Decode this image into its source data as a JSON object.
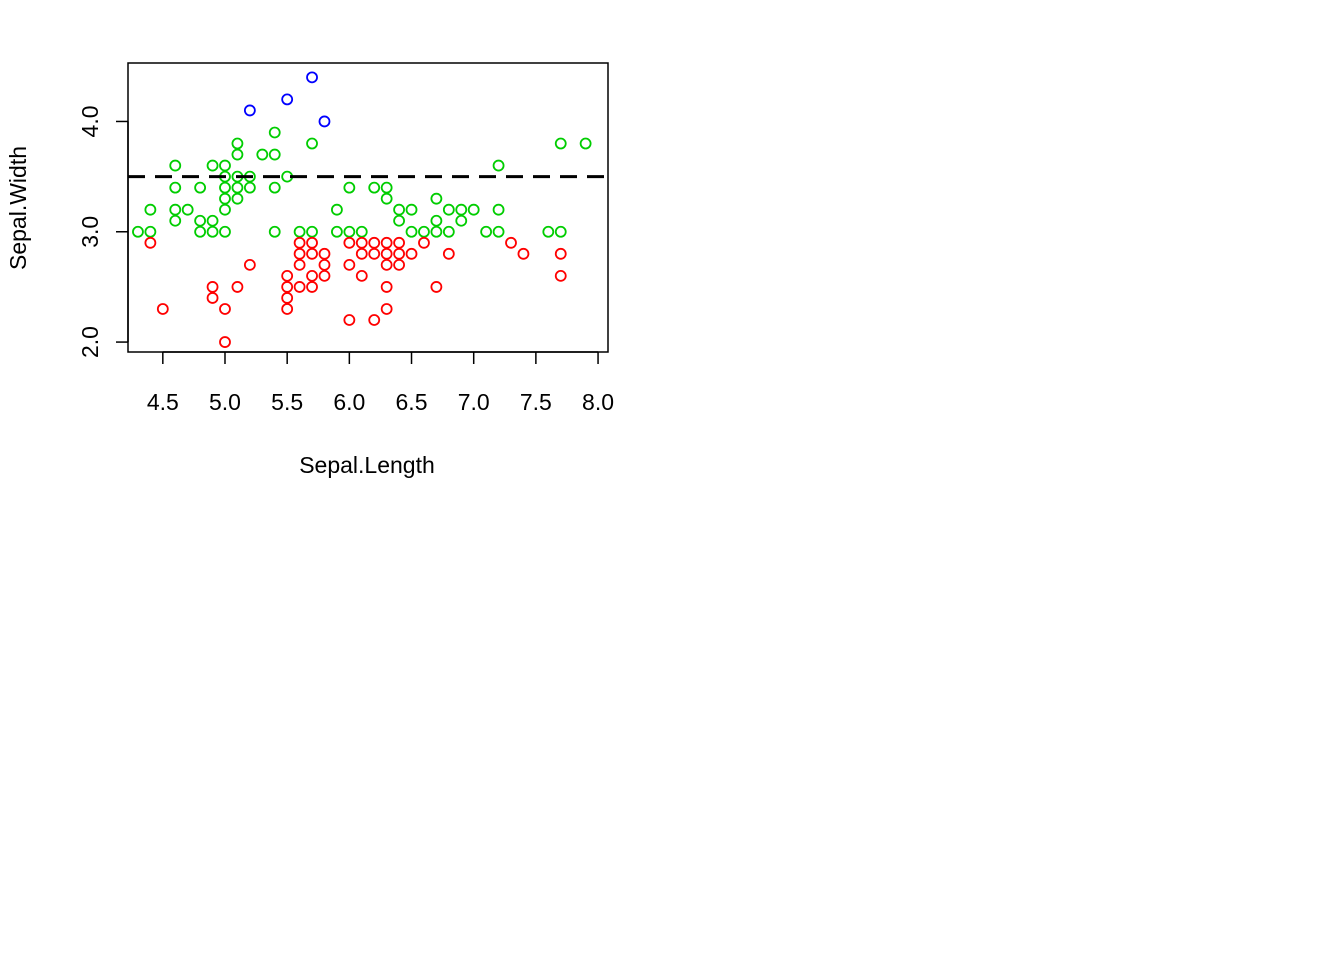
{
  "chart_data": {
    "type": "scatter",
    "title": "",
    "xlabel": "Sepal.Length",
    "ylabel": "Sepal.Width",
    "xlim": [
      4.22,
      8.08
    ],
    "ylim": [
      1.91,
      4.53
    ],
    "x_ticks": [
      4.5,
      5.0,
      5.5,
      6.0,
      6.5,
      7.0,
      7.5,
      8.0
    ],
    "x_tick_labels": [
      "4.5",
      "5.0",
      "5.5",
      "6.0",
      "6.5",
      "7.0",
      "7.5",
      "8.0"
    ],
    "y_ticks": [
      2.0,
      3.0,
      4.0
    ],
    "y_tick_labels": [
      "2.0",
      "3.0",
      "4.0"
    ],
    "marker": "open-circle",
    "reference_line": {
      "type": "horizontal",
      "y": 3.5,
      "style": "dashed",
      "color": "#000000"
    },
    "series": [
      {
        "name": "blue",
        "color": "#0000ff",
        "points": [
          [
            5.2,
            4.1
          ],
          [
            5.5,
            4.2
          ],
          [
            5.7,
            4.4
          ],
          [
            5.8,
            4.0
          ]
        ]
      },
      {
        "name": "green",
        "color": "#00cd00",
        "points": [
          [
            4.3,
            3.0
          ],
          [
            4.4,
            3.2
          ],
          [
            4.4,
            3.0
          ],
          [
            4.6,
            3.6
          ],
          [
            4.6,
            3.4
          ],
          [
            4.6,
            3.2
          ],
          [
            4.6,
            3.1
          ],
          [
            4.7,
            3.2
          ],
          [
            4.8,
            3.4
          ],
          [
            4.8,
            3.1
          ],
          [
            4.8,
            3.0
          ],
          [
            4.9,
            3.6
          ],
          [
            4.9,
            3.1
          ],
          [
            4.9,
            3.0
          ],
          [
            5.0,
            3.6
          ],
          [
            5.0,
            3.5
          ],
          [
            5.0,
            3.4
          ],
          [
            5.0,
            3.3
          ],
          [
            5.0,
            3.2
          ],
          [
            5.0,
            3.0
          ],
          [
            5.1,
            3.8
          ],
          [
            5.1,
            3.7
          ],
          [
            5.1,
            3.5
          ],
          [
            5.1,
            3.4
          ],
          [
            5.1,
            3.3
          ],
          [
            5.2,
            3.5
          ],
          [
            5.2,
            3.4
          ],
          [
            5.3,
            3.7
          ],
          [
            5.4,
            3.9
          ],
          [
            5.4,
            3.7
          ],
          [
            5.4,
            3.4
          ],
          [
            5.4,
            3.0
          ],
          [
            5.5,
            3.5
          ],
          [
            5.6,
            3.0
          ],
          [
            5.7,
            3.8
          ],
          [
            5.7,
            3.0
          ],
          [
            5.9,
            3.2
          ],
          [
            5.9,
            3.0
          ],
          [
            6.0,
            3.4
          ],
          [
            6.0,
            3.0
          ],
          [
            6.1,
            3.0
          ],
          [
            6.2,
            3.4
          ],
          [
            6.3,
            3.4
          ],
          [
            6.3,
            3.3
          ],
          [
            6.4,
            3.2
          ],
          [
            6.4,
            3.1
          ],
          [
            6.5,
            3.2
          ],
          [
            6.5,
            3.0
          ],
          [
            6.6,
            3.0
          ],
          [
            6.7,
            3.3
          ],
          [
            6.7,
            3.1
          ],
          [
            6.7,
            3.0
          ],
          [
            6.8,
            3.2
          ],
          [
            6.8,
            3.0
          ],
          [
            6.9,
            3.2
          ],
          [
            6.9,
            3.1
          ],
          [
            7.0,
            3.2
          ],
          [
            7.1,
            3.0
          ],
          [
            7.2,
            3.6
          ],
          [
            7.2,
            3.2
          ],
          [
            7.2,
            3.0
          ],
          [
            7.6,
            3.0
          ],
          [
            7.7,
            3.8
          ],
          [
            7.7,
            3.0
          ],
          [
            7.9,
            3.8
          ]
        ]
      },
      {
        "name": "red",
        "color": "#ff0000",
        "points": [
          [
            4.4,
            2.9
          ],
          [
            4.5,
            2.3
          ],
          [
            4.9,
            2.5
          ],
          [
            4.9,
            2.4
          ],
          [
            5.0,
            2.3
          ],
          [
            5.0,
            2.0
          ],
          [
            5.1,
            2.5
          ],
          [
            5.2,
            2.7
          ],
          [
            5.5,
            2.6
          ],
          [
            5.5,
            2.5
          ],
          [
            5.5,
            2.4
          ],
          [
            5.5,
            2.3
          ],
          [
            5.6,
            2.9
          ],
          [
            5.6,
            2.8
          ],
          [
            5.6,
            2.7
          ],
          [
            5.6,
            2.5
          ],
          [
            5.7,
            2.9
          ],
          [
            5.7,
            2.8
          ],
          [
            5.7,
            2.6
          ],
          [
            5.7,
            2.5
          ],
          [
            5.8,
            2.8
          ],
          [
            5.8,
            2.7
          ],
          [
            5.8,
            2.6
          ],
          [
            6.0,
            2.9
          ],
          [
            6.0,
            2.7
          ],
          [
            6.0,
            2.2
          ],
          [
            6.1,
            2.9
          ],
          [
            6.1,
            2.8
          ],
          [
            6.1,
            2.6
          ],
          [
            6.2,
            2.9
          ],
          [
            6.2,
            2.8
          ],
          [
            6.2,
            2.2
          ],
          [
            6.3,
            2.9
          ],
          [
            6.3,
            2.8
          ],
          [
            6.3,
            2.7
          ],
          [
            6.3,
            2.5
          ],
          [
            6.3,
            2.3
          ],
          [
            6.4,
            2.9
          ],
          [
            6.4,
            2.8
          ],
          [
            6.4,
            2.7
          ],
          [
            6.5,
            2.8
          ],
          [
            6.6,
            2.9
          ],
          [
            6.7,
            2.5
          ],
          [
            6.8,
            2.8
          ],
          [
            7.3,
            2.9
          ],
          [
            7.4,
            2.8
          ],
          [
            7.7,
            2.8
          ],
          [
            7.7,
            2.6
          ]
        ]
      }
    ]
  }
}
